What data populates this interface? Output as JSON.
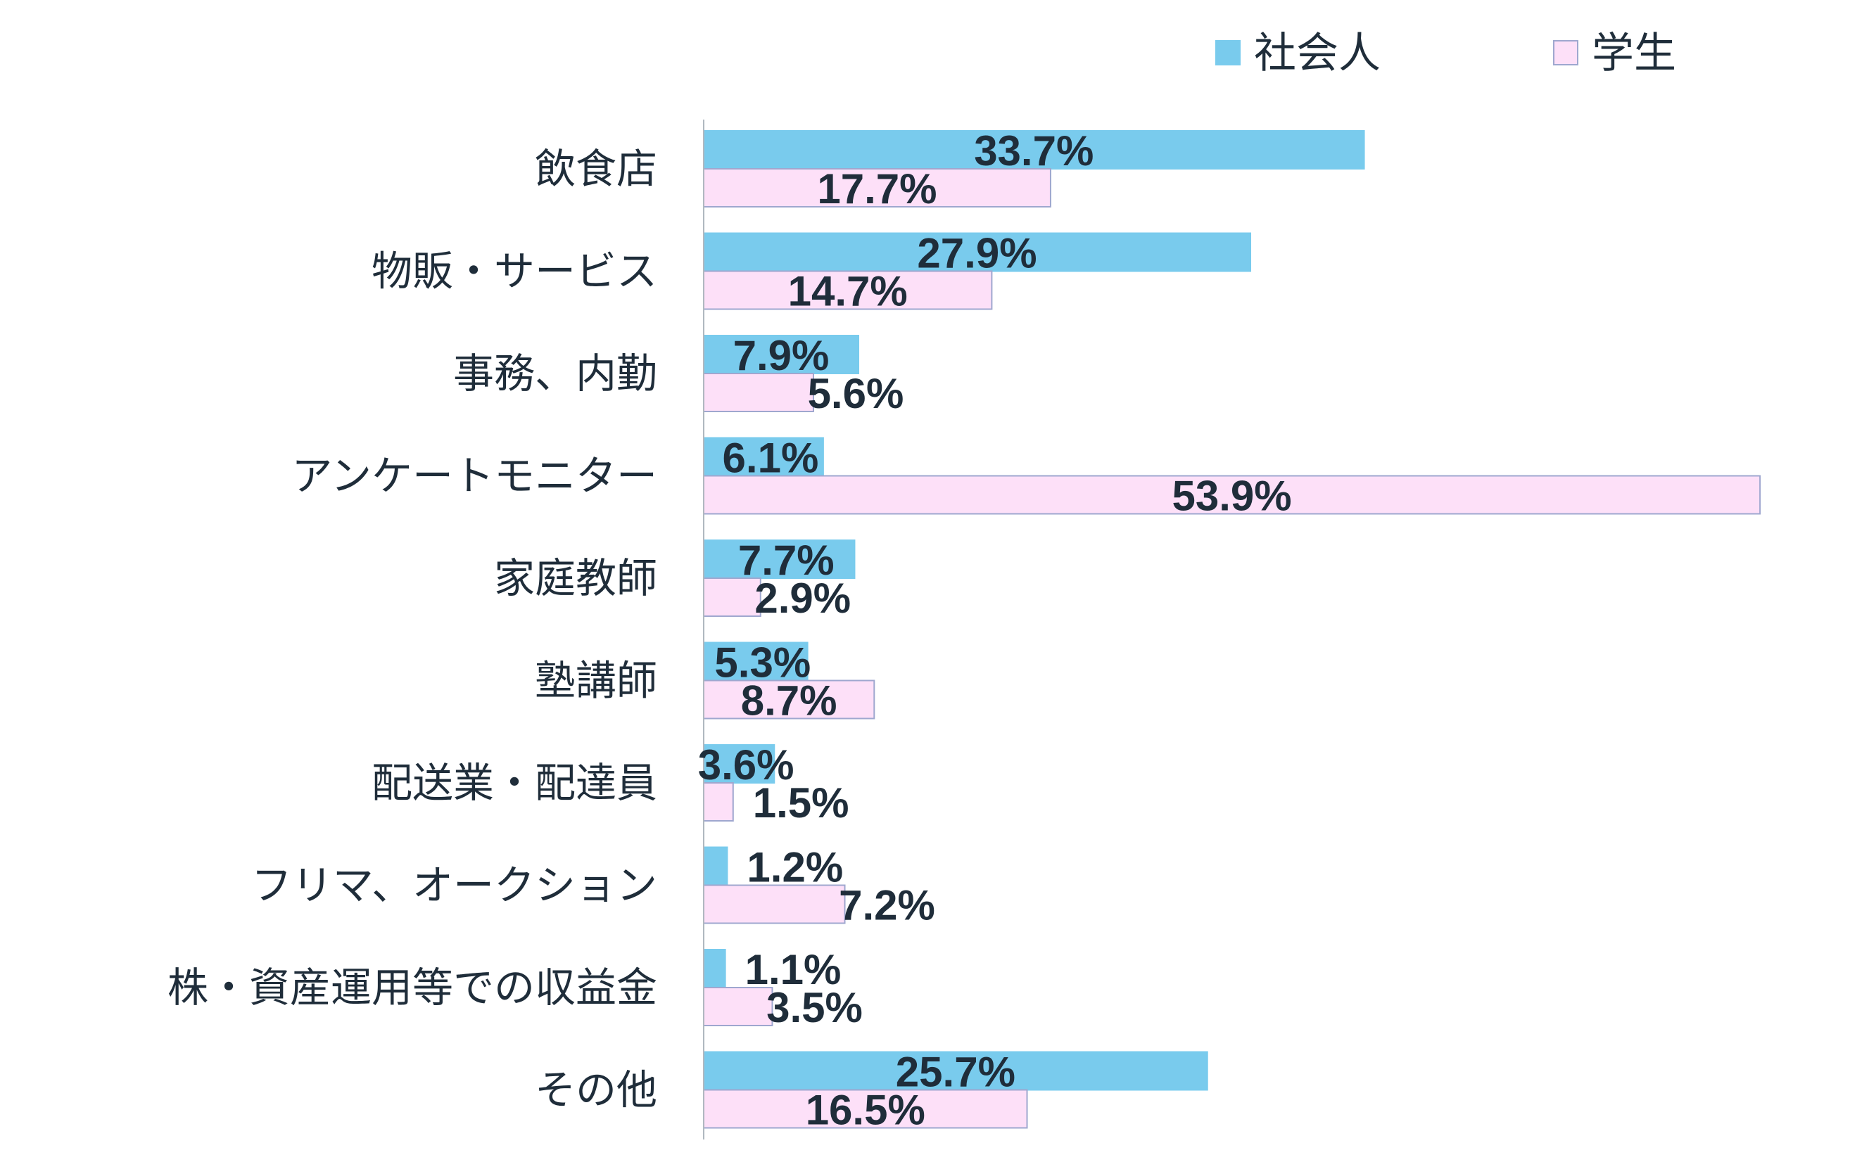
{
  "chart_data": {
    "type": "bar",
    "orientation": "horizontal",
    "categories": [
      "飲食店",
      "物販・サービス",
      "事務、内勤",
      "アンケートモニター",
      "家庭教師",
      "塾講師",
      "配送業・配達員",
      "フリマ、オークション",
      "株・資産運用等での収益金",
      "その他"
    ],
    "series": [
      {
        "name": "社会人",
        "color": "#79cbed",
        "border": "#79cbed",
        "values": [
          33.7,
          27.9,
          7.9,
          6.1,
          7.7,
          5.3,
          3.6,
          1.2,
          1.1,
          25.7
        ],
        "labels": [
          "33.7%",
          "27.9%",
          "7.9%",
          "6.1%",
          "7.7%",
          "5.3%",
          "3.6%",
          "1.2%",
          "1.1%",
          "25.7%"
        ]
      },
      {
        "name": "学生",
        "color": "#fde0f8",
        "border": "#9fa7cf",
        "values": [
          17.7,
          14.7,
          5.6,
          53.9,
          2.9,
          8.7,
          1.5,
          7.2,
          3.5,
          16.5
        ],
        "labels": [
          "17.7%",
          "14.7%",
          "5.6%",
          "53.9%",
          "2.9%",
          "8.7%",
          "1.5%",
          "7.2%",
          "3.5%",
          "16.5%"
        ]
      }
    ],
    "legend_position": "top-right",
    "xlim": [
      0,
      55
    ],
    "grid": false
  }
}
